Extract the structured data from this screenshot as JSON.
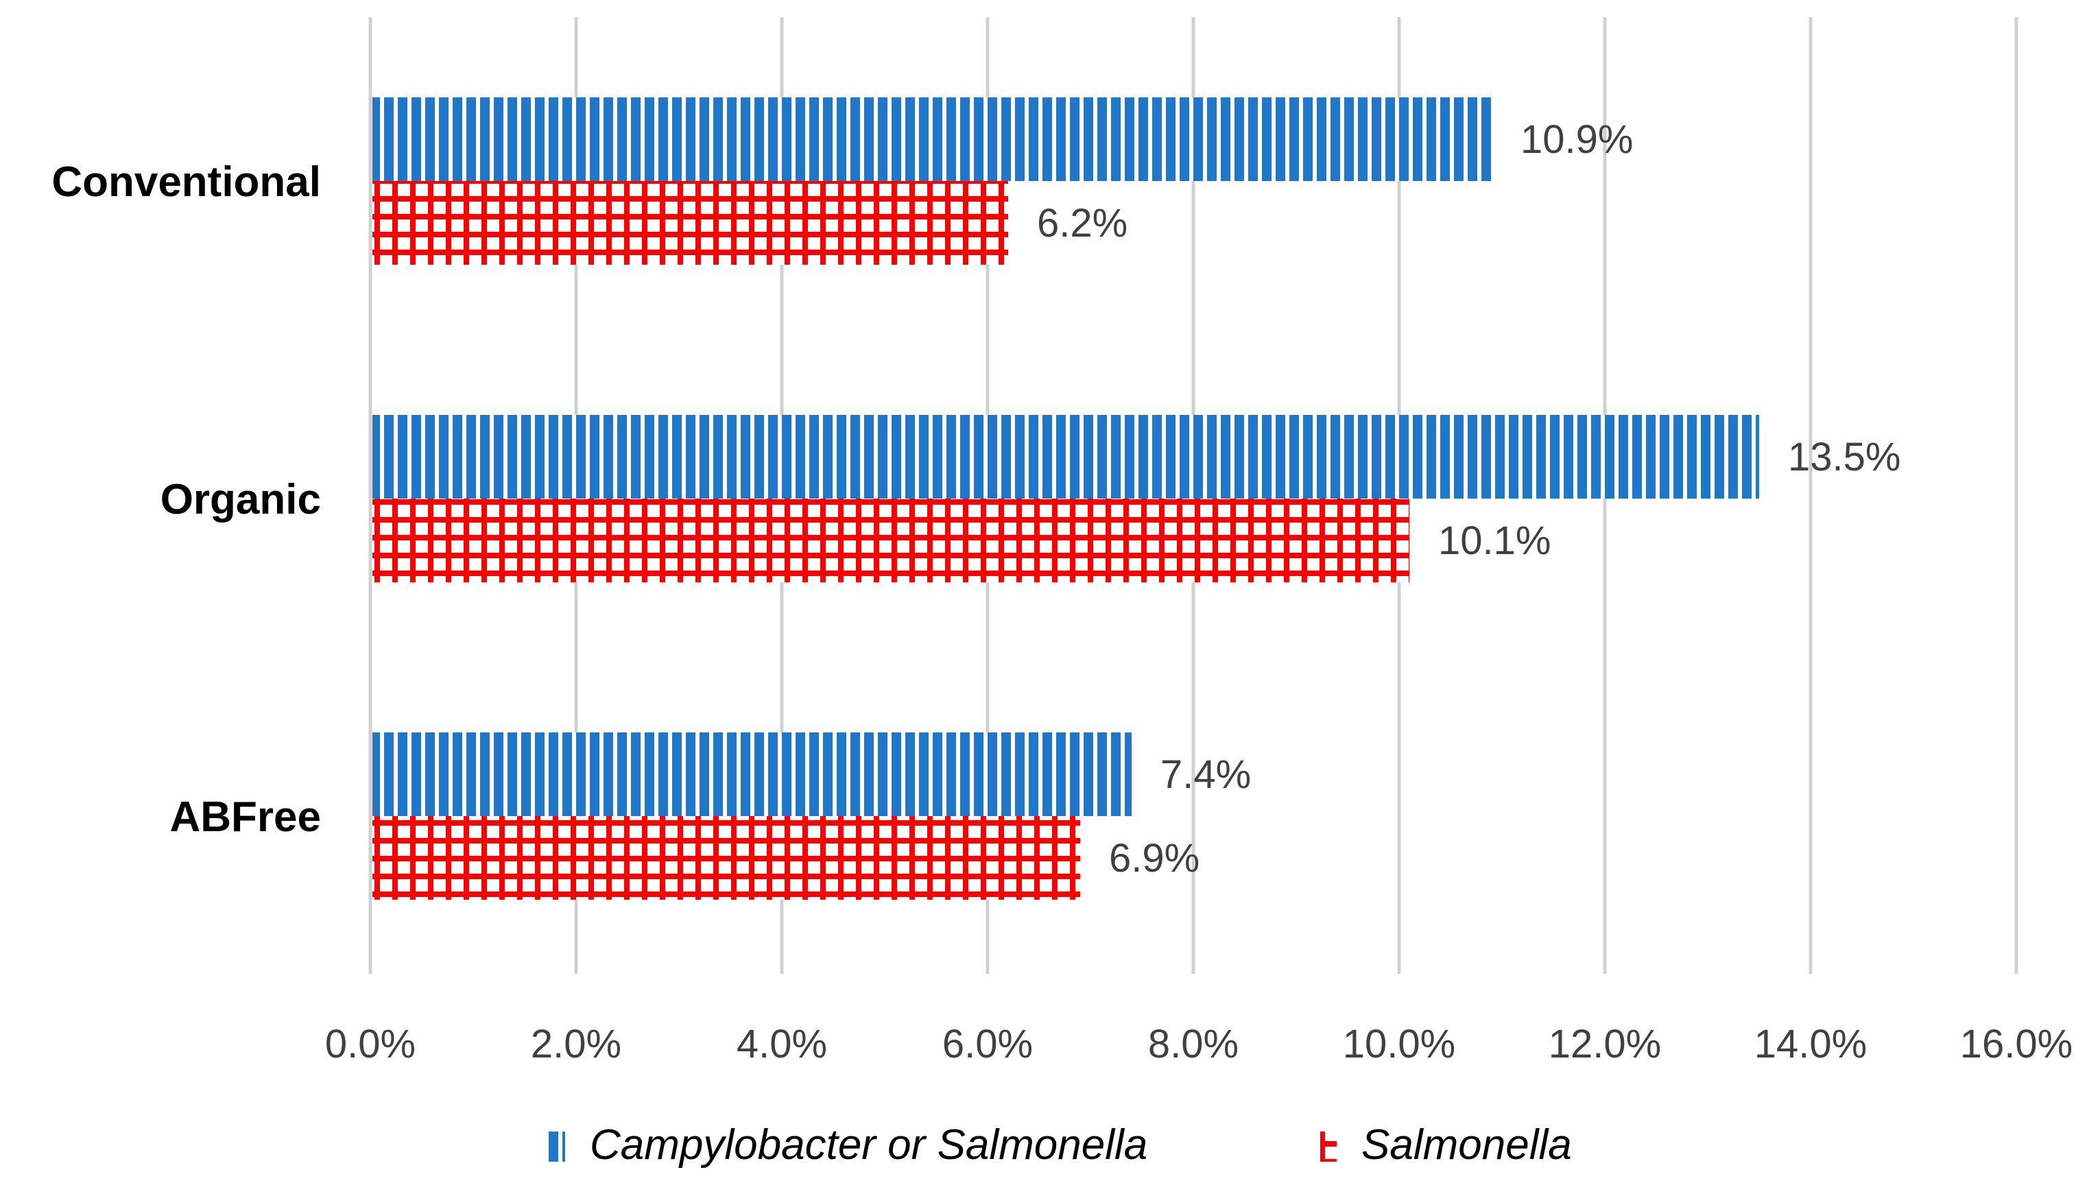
{
  "chart_data": {
    "type": "bar",
    "orientation": "horizontal",
    "title": "",
    "xlabel": "",
    "ylabel": "",
    "categories": [
      "Conventional",
      "Organic",
      "ABFree"
    ],
    "series": [
      {
        "name": "Campylobacter or Salmonella",
        "values": [
          10.9,
          13.5,
          7.4
        ],
        "labels": [
          "10.9%",
          "13.5%",
          "7.4%"
        ],
        "color": "#1f77c9",
        "pattern": "vertical-stripes"
      },
      {
        "name": "Salmonella",
        "values": [
          6.2,
          10.1,
          6.9
        ],
        "labels": [
          "6.2%",
          "10.1%",
          "6.9%"
        ],
        "color": "#ff0000",
        "pattern": "grid"
      }
    ],
    "xlim": [
      0,
      16
    ],
    "xticks": [
      0,
      2,
      4,
      6,
      8,
      10,
      12,
      14,
      16
    ],
    "xtick_labels": [
      "0.0%",
      "2.0%",
      "4.0%",
      "6.0%",
      "8.0%",
      "10.0%",
      "12.0%",
      "14.0%",
      "16.0%"
    ],
    "grid": true,
    "legend": "bottom"
  }
}
